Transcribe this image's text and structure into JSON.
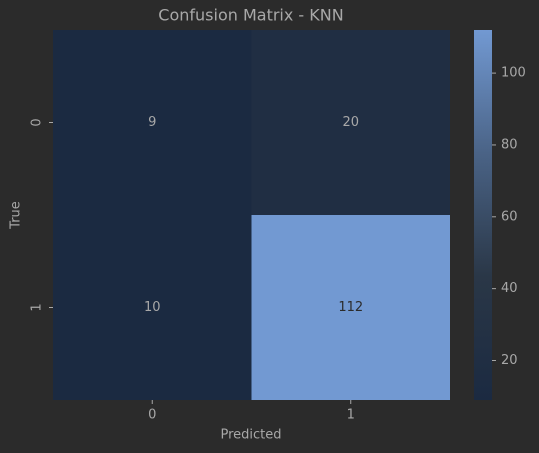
{
  "chart_data": {
    "type": "heatmap",
    "title": "Confusion Matrix - KNN",
    "x_label": "Predicted",
    "y_label": "True",
    "x_categories": [
      "0",
      "1"
    ],
    "y_categories": [
      "0",
      "1"
    ],
    "values": [
      [
        9,
        20
      ],
      [
        10,
        112
      ]
    ],
    "colormap": [
      "#1b2a41",
      "#2a3747",
      "#4a6386",
      "#7299d2"
    ],
    "clim": [
      9,
      112
    ],
    "colorbar_ticks": [
      20,
      40,
      60,
      80,
      100
    ]
  }
}
